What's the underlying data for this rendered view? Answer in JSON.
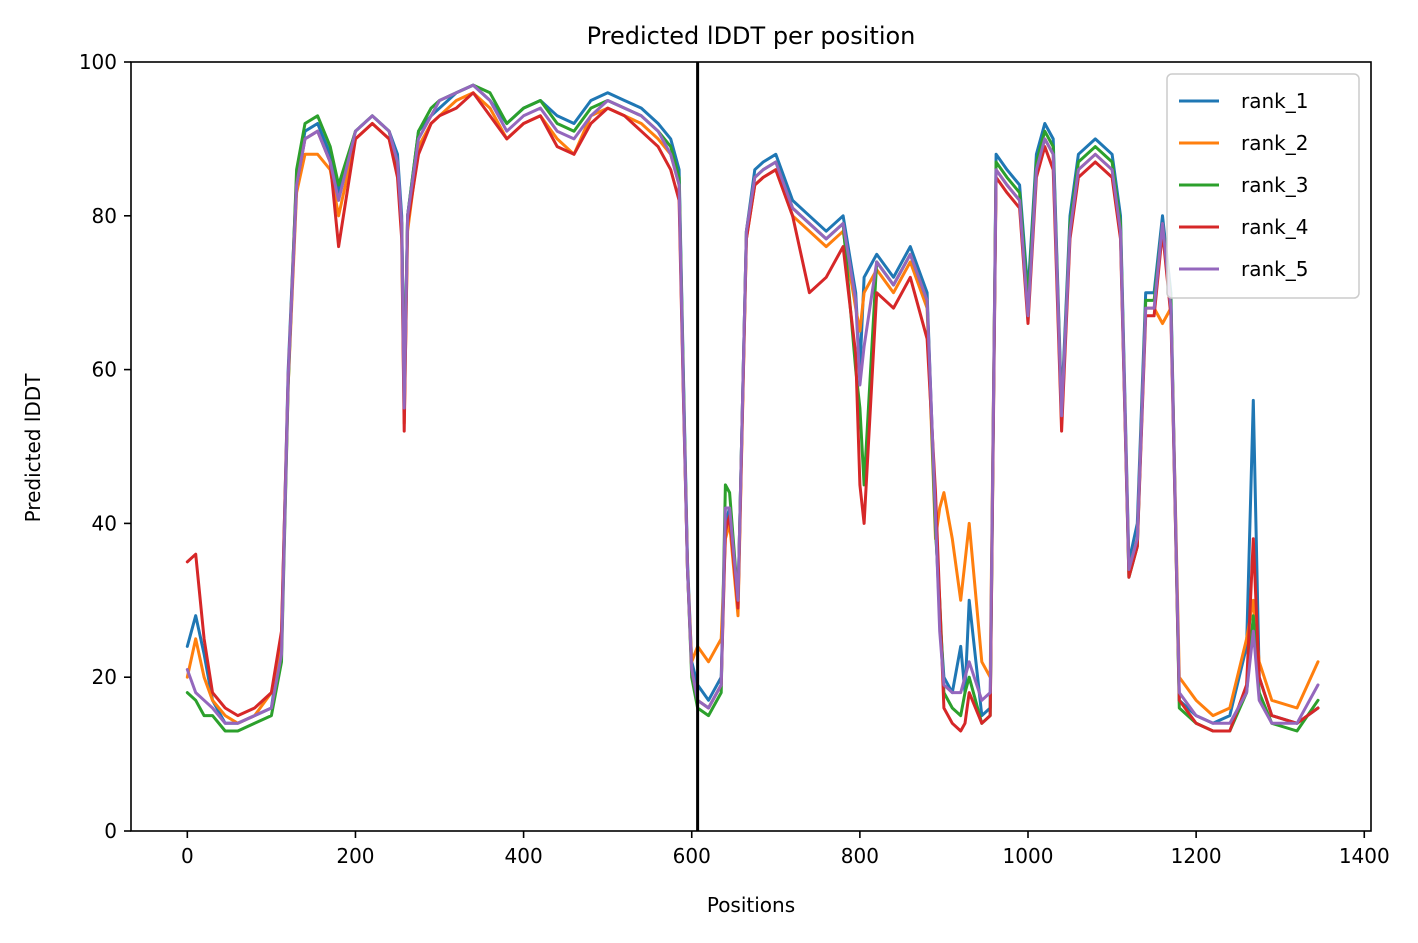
{
  "chart_data": {
    "type": "line",
    "title": "Predicted lDDT per position",
    "xlabel": "Positions",
    "ylabel": "Predicted lDDT",
    "xlim": [
      -67,
      1408
    ],
    "ylim": [
      0,
      100
    ],
    "xticks": [
      0,
      200,
      400,
      600,
      800,
      1000,
      1200,
      1400
    ],
    "yticks": [
      0,
      20,
      40,
      60,
      80,
      100
    ],
    "grid": false,
    "legend_position": "top-right",
    "chain_break_x": 607,
    "chain_break_color": "#000000",
    "x": [
      0,
      10,
      20,
      30,
      45,
      60,
      80,
      100,
      112,
      120,
      130,
      140,
      155,
      170,
      180,
      200,
      220,
      240,
      250,
      255,
      258,
      262,
      275,
      290,
      300,
      320,
      340,
      360,
      380,
      400,
      420,
      440,
      460,
      480,
      500,
      520,
      540,
      560,
      575,
      585,
      590,
      595,
      600,
      607,
      620,
      635,
      640,
      645,
      655,
      665,
      675,
      685,
      700,
      720,
      740,
      760,
      780,
      795,
      800,
      805,
      820,
      840,
      860,
      880,
      890,
      895,
      900,
      910,
      920,
      925,
      930,
      945,
      955,
      962,
      975,
      990,
      1000,
      1010,
      1020,
      1030,
      1040,
      1050,
      1060,
      1080,
      1100,
      1110,
      1120,
      1130,
      1140,
      1150,
      1160,
      1170,
      1180,
      1200,
      1220,
      1240,
      1260,
      1268,
      1275,
      1290,
      1320,
      1345
    ],
    "series": [
      {
        "name": "rank_1",
        "color": "#1f77b4",
        "values": [
          24,
          28,
          23,
          17,
          14,
          14,
          15,
          16,
          25,
          60,
          85,
          91,
          92,
          88,
          83,
          91,
          93,
          91,
          88,
          80,
          57,
          80,
          91,
          93,
          94,
          96,
          97,
          95,
          92,
          94,
          95,
          93,
          92,
          95,
          96,
          95,
          94,
          92,
          90,
          86,
          60,
          35,
          22,
          19,
          17,
          20,
          40,
          42,
          30,
          78,
          86,
          87,
          88,
          82,
          80,
          78,
          80,
          70,
          60,
          72,
          75,
          72,
          76,
          70,
          40,
          28,
          20,
          18,
          24,
          18,
          30,
          15,
          16,
          88,
          86,
          84,
          70,
          88,
          92,
          90,
          55,
          80,
          88,
          90,
          88,
          80,
          35,
          40,
          70,
          70,
          80,
          70,
          17,
          15,
          14,
          15,
          24,
          56,
          20,
          15,
          14,
          16
        ]
      },
      {
        "name": "rank_2",
        "color": "#ff7f0e",
        "values": [
          20,
          25,
          20,
          17,
          15,
          14,
          15,
          18,
          24,
          58,
          83,
          88,
          88,
          86,
          80,
          90,
          92,
          90,
          86,
          78,
          53,
          78,
          89,
          92,
          93,
          95,
          96,
          94,
          90,
          92,
          93,
          90,
          88,
          93,
          94,
          93,
          92,
          90,
          88,
          84,
          58,
          34,
          22,
          24,
          22,
          25,
          38,
          40,
          28,
          77,
          84,
          85,
          86,
          80,
          78,
          76,
          78,
          68,
          65,
          70,
          73,
          70,
          74,
          68,
          38,
          42,
          44,
          38,
          30,
          35,
          40,
          22,
          20,
          86,
          84,
          82,
          68,
          86,
          90,
          88,
          53,
          78,
          86,
          88,
          86,
          78,
          34,
          38,
          68,
          68,
          66,
          68,
          20,
          17,
          15,
          16,
          25,
          30,
          22,
          17,
          16,
          22
        ]
      },
      {
        "name": "rank_3",
        "color": "#2ca02c",
        "values": [
          18,
          17,
          15,
          15,
          13,
          13,
          14,
          15,
          22,
          58,
          86,
          92,
          93,
          89,
          84,
          91,
          93,
          91,
          86,
          79,
          56,
          80,
          91,
          94,
          95,
          96,
          97,
          96,
          92,
          94,
          95,
          92,
          91,
          94,
          95,
          94,
          93,
          91,
          89,
          85,
          59,
          34,
          20,
          16,
          15,
          18,
          45,
          44,
          30,
          78,
          85,
          86,
          87,
          81,
          79,
          77,
          79,
          60,
          55,
          45,
          74,
          71,
          75,
          69,
          39,
          30,
          18,
          16,
          15,
          18,
          20,
          14,
          15,
          87,
          85,
          83,
          69,
          87,
          91,
          89,
          54,
          79,
          87,
          89,
          87,
          79,
          33,
          37,
          69,
          69,
          79,
          69,
          16,
          14,
          13,
          13,
          18,
          28,
          18,
          14,
          13,
          17
        ]
      },
      {
        "name": "rank_4",
        "color": "#d62728",
        "values": [
          35,
          36,
          25,
          18,
          16,
          15,
          16,
          18,
          26,
          59,
          84,
          90,
          91,
          87,
          76,
          90,
          92,
          90,
          85,
          77,
          52,
          79,
          88,
          92,
          93,
          94,
          96,
          93,
          90,
          92,
          93,
          89,
          88,
          92,
          94,
          93,
          91,
          89,
          86,
          82,
          57,
          34,
          21,
          17,
          16,
          19,
          39,
          41,
          29,
          77,
          84,
          85,
          86,
          80,
          70,
          72,
          76,
          62,
          45,
          40,
          70,
          68,
          72,
          64,
          44,
          30,
          16,
          14,
          13,
          14,
          18,
          14,
          15,
          85,
          83,
          81,
          66,
          85,
          89,
          86,
          52,
          77,
          85,
          87,
          85,
          77,
          33,
          37,
          67,
          67,
          78,
          67,
          17,
          14,
          13,
          13,
          19,
          38,
          20,
          15,
          14,
          16
        ]
      },
      {
        "name": "rank_5",
        "color": "#9467bd",
        "values": [
          21,
          18,
          17,
          16,
          14,
          14,
          15,
          16,
          23,
          59,
          84,
          90,
          91,
          87,
          82,
          91,
          93,
          91,
          87,
          79,
          55,
          80,
          90,
          93,
          95,
          96,
          97,
          95,
          91,
          93,
          94,
          91,
          90,
          93,
          95,
          94,
          93,
          91,
          88,
          84,
          58,
          34,
          21,
          17,
          16,
          19,
          42,
          42,
          30,
          78,
          85,
          86,
          87,
          81,
          79,
          77,
          79,
          69,
          58,
          63,
          74,
          71,
          75,
          69,
          41,
          26,
          19,
          18,
          18,
          20,
          22,
          17,
          18,
          86,
          84,
          82,
          67,
          86,
          90,
          88,
          54,
          78,
          86,
          88,
          86,
          78,
          34,
          38,
          68,
          68,
          79,
          68,
          18,
          15,
          14,
          14,
          18,
          26,
          17,
          14,
          14,
          19
        ]
      }
    ]
  }
}
